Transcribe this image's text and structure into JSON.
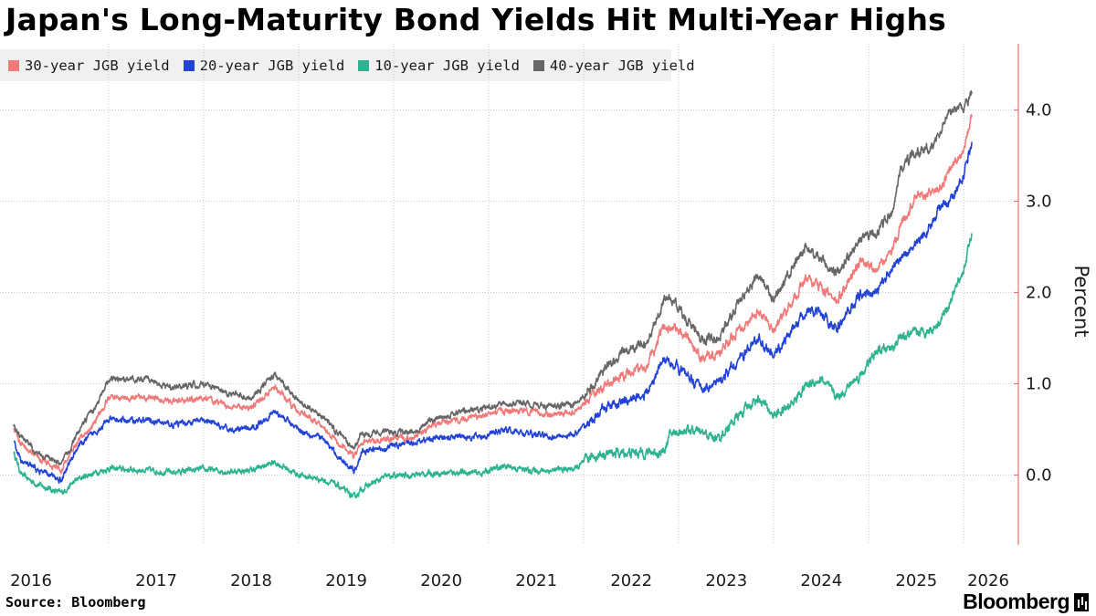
{
  "title": "Japan's Long-Maturity Bond Yields Hit Multi-Year Highs",
  "source": "Source: Bloomberg",
  "brand": "Bloomberg",
  "brand_icon": "bloomberg-terminal-icon",
  "chart_data": {
    "type": "line",
    "ylabel": "Percent",
    "ylim": [
      -0.75,
      4.65
    ],
    "y_ticks": [
      "0.0",
      "1.0",
      "2.0",
      "3.0",
      "4.0"
    ],
    "x_ticks": [
      "2016",
      "2017",
      "2018",
      "2019",
      "2020",
      "2021",
      "2022",
      "2023",
      "2024",
      "2025",
      "2026"
    ],
    "x_range": [
      "2016-01",
      "2026-02"
    ],
    "grid": true,
    "legend_position": "top-left",
    "series": [
      {
        "name": "30-year JGB yield",
        "color": "#f07a7a",
        "x": [
          "2016-01",
          "2016-02",
          "2016-04",
          "2016-07",
          "2016-09",
          "2016-11",
          "2017-01",
          "2017-06",
          "2017-09",
          "2018-01",
          "2018-04",
          "2018-07",
          "2018-10",
          "2019-01",
          "2019-04",
          "2019-06",
          "2019-08",
          "2019-09",
          "2019-12",
          "2020-03",
          "2020-06",
          "2020-09",
          "2020-12",
          "2021-03",
          "2021-06",
          "2021-09",
          "2021-12",
          "2022-02",
          "2022-04",
          "2022-06",
          "2022-09",
          "2022-11",
          "2022-12",
          "2023-02",
          "2023-04",
          "2023-06",
          "2023-08",
          "2023-11",
          "2024-01",
          "2024-03",
          "2024-05",
          "2024-07",
          "2024-09",
          "2024-12",
          "2025-02",
          "2025-04",
          "2025-05",
          "2025-07",
          "2025-09",
          "2025-10",
          "2025-11",
          "2026-01",
          "2026-02"
        ],
        "y": [
          0.5,
          0.35,
          0.2,
          0.05,
          0.35,
          0.55,
          0.85,
          0.85,
          0.8,
          0.85,
          0.75,
          0.75,
          0.95,
          0.7,
          0.55,
          0.35,
          0.2,
          0.35,
          0.4,
          0.4,
          0.55,
          0.6,
          0.65,
          0.7,
          0.7,
          0.65,
          0.7,
          0.85,
          1.0,
          1.1,
          1.2,
          1.6,
          1.65,
          1.5,
          1.3,
          1.3,
          1.55,
          1.8,
          1.6,
          1.85,
          2.15,
          2.05,
          1.9,
          2.35,
          2.25,
          2.45,
          2.75,
          3.05,
          3.1,
          3.15,
          3.3,
          3.55,
          3.95
        ]
      },
      {
        "name": "20-year JGB yield",
        "color": "#2343d6",
        "x": [
          "2016-01",
          "2016-02",
          "2016-04",
          "2016-07",
          "2016-09",
          "2016-11",
          "2017-01",
          "2017-06",
          "2017-09",
          "2018-01",
          "2018-04",
          "2018-07",
          "2018-10",
          "2019-01",
          "2019-04",
          "2019-06",
          "2019-08",
          "2019-09",
          "2019-12",
          "2020-03",
          "2020-06",
          "2020-09",
          "2020-12",
          "2021-03",
          "2021-06",
          "2021-09",
          "2021-12",
          "2022-02",
          "2022-04",
          "2022-06",
          "2022-09",
          "2022-11",
          "2022-12",
          "2023-02",
          "2023-04",
          "2023-06",
          "2023-08",
          "2023-11",
          "2024-01",
          "2024-03",
          "2024-05",
          "2024-07",
          "2024-09",
          "2024-12",
          "2025-02",
          "2025-04",
          "2025-05",
          "2025-07",
          "2025-09",
          "2025-10",
          "2025-11",
          "2026-01",
          "2026-02"
        ],
        "y": [
          0.35,
          0.15,
          0.05,
          -0.05,
          0.3,
          0.45,
          0.6,
          0.6,
          0.55,
          0.6,
          0.5,
          0.5,
          0.7,
          0.5,
          0.4,
          0.2,
          0.05,
          0.25,
          0.3,
          0.35,
          0.4,
          0.42,
          0.42,
          0.5,
          0.45,
          0.42,
          0.45,
          0.6,
          0.75,
          0.8,
          0.9,
          1.25,
          1.25,
          1.1,
          0.95,
          1.0,
          1.2,
          1.5,
          1.3,
          1.55,
          1.8,
          1.75,
          1.6,
          2.0,
          2.0,
          2.3,
          2.35,
          2.55,
          2.75,
          2.95,
          2.95,
          3.3,
          3.65
        ]
      },
      {
        "name": "10-year JGB yield",
        "color": "#2db38f",
        "x": [
          "2016-01",
          "2016-02",
          "2016-04",
          "2016-07",
          "2016-09",
          "2016-11",
          "2017-01",
          "2017-06",
          "2017-09",
          "2018-01",
          "2018-04",
          "2018-07",
          "2018-10",
          "2019-01",
          "2019-04",
          "2019-06",
          "2019-08",
          "2019-09",
          "2019-12",
          "2020-03",
          "2020-06",
          "2020-09",
          "2020-12",
          "2021-03",
          "2021-06",
          "2021-09",
          "2021-12",
          "2022-02",
          "2022-04",
          "2022-06",
          "2022-09",
          "2022-11",
          "2022-12",
          "2023-02",
          "2023-04",
          "2023-06",
          "2023-08",
          "2023-11",
          "2024-01",
          "2024-03",
          "2024-05",
          "2024-07",
          "2024-09",
          "2024-12",
          "2025-02",
          "2025-04",
          "2025-05",
          "2025-07",
          "2025-09",
          "2025-10",
          "2025-11",
          "2026-01",
          "2026-02"
        ],
        "y": [
          0.25,
          0.0,
          -0.1,
          -0.2,
          -0.05,
          0.02,
          0.07,
          0.05,
          0.03,
          0.06,
          0.04,
          0.05,
          0.14,
          0.0,
          -0.05,
          -0.12,
          -0.25,
          -0.15,
          -0.02,
          0.0,
          0.02,
          0.03,
          0.02,
          0.1,
          0.05,
          0.05,
          0.07,
          0.2,
          0.24,
          0.24,
          0.25,
          0.25,
          0.45,
          0.5,
          0.45,
          0.4,
          0.6,
          0.85,
          0.65,
          0.75,
          0.98,
          1.05,
          0.85,
          1.1,
          1.35,
          1.4,
          1.5,
          1.55,
          1.6,
          1.7,
          1.85,
          2.25,
          2.65
        ]
      },
      {
        "name": "40-year JGB yield",
        "color": "#666666",
        "x": [
          "2016-01",
          "2016-02",
          "2016-04",
          "2016-07",
          "2016-09",
          "2016-11",
          "2017-01",
          "2017-06",
          "2017-09",
          "2018-01",
          "2018-04",
          "2018-07",
          "2018-10",
          "2019-01",
          "2019-04",
          "2019-06",
          "2019-08",
          "2019-09",
          "2019-12",
          "2020-03",
          "2020-06",
          "2020-09",
          "2020-12",
          "2021-03",
          "2021-06",
          "2021-09",
          "2021-12",
          "2022-02",
          "2022-04",
          "2022-06",
          "2022-09",
          "2022-11",
          "2022-12",
          "2023-02",
          "2023-04",
          "2023-06",
          "2023-08",
          "2023-11",
          "2024-01",
          "2024-03",
          "2024-05",
          "2024-07",
          "2024-09",
          "2024-12",
          "2025-02",
          "2025-04",
          "2025-05",
          "2025-07",
          "2025-09",
          "2025-10",
          "2025-11",
          "2026-01",
          "2026-02"
        ],
        "y": [
          0.55,
          0.4,
          0.25,
          0.1,
          0.45,
          0.7,
          1.05,
          1.05,
          0.95,
          1.0,
          0.9,
          0.85,
          1.1,
          0.8,
          0.65,
          0.45,
          0.3,
          0.45,
          0.48,
          0.45,
          0.62,
          0.68,
          0.72,
          0.8,
          0.78,
          0.75,
          0.78,
          0.95,
          1.2,
          1.35,
          1.45,
          1.9,
          1.95,
          1.7,
          1.5,
          1.5,
          1.8,
          2.2,
          1.9,
          2.2,
          2.5,
          2.35,
          2.2,
          2.6,
          2.65,
          2.9,
          3.35,
          3.55,
          3.6,
          3.75,
          4.0,
          4.0,
          4.2
        ]
      }
    ]
  }
}
